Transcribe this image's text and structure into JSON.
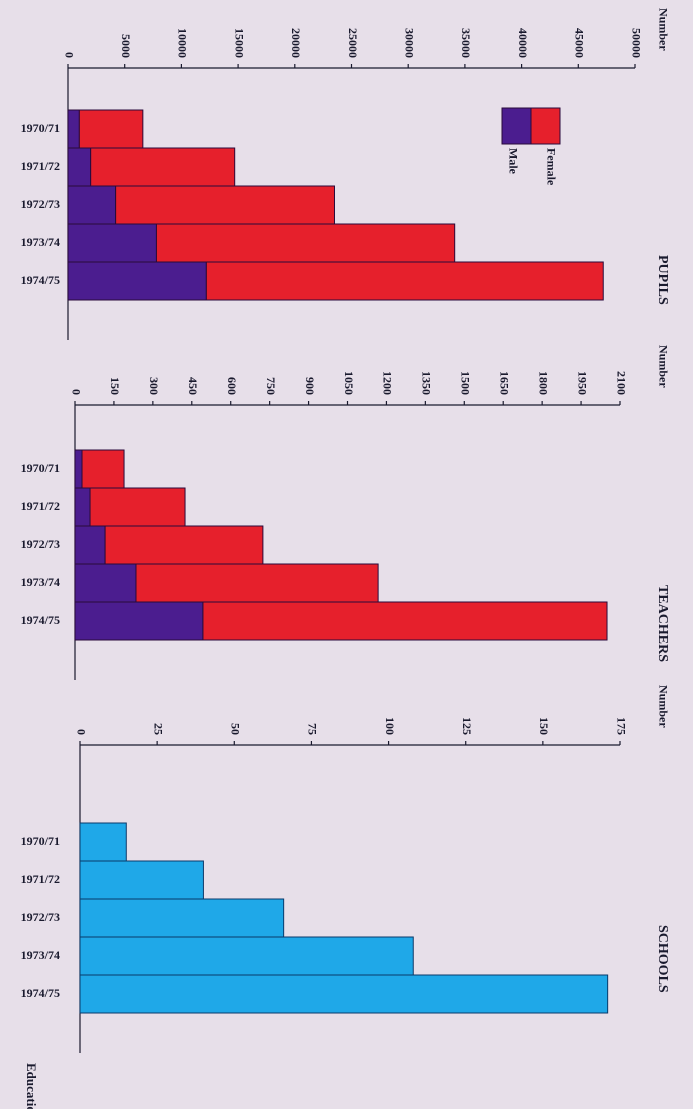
{
  "chart_data": [
    {
      "type": "bar",
      "orientation": "horizontal",
      "stacked": true,
      "title": "PUPILS",
      "value_label": "Number",
      "categories": [
        "1970/71",
        "1971/72",
        "1972/73",
        "1973/74",
        "1974/75"
      ],
      "series": [
        {
          "name": "Female",
          "color": "#4b1d8f",
          "values": [
            1000,
            2000,
            4200,
            7800,
            12200
          ]
        },
        {
          "name": "Male",
          "color": "#e6202c",
          "values": [
            5600,
            12700,
            19300,
            26300,
            35000
          ]
        }
      ],
      "xlim": [
        0,
        50000
      ],
      "xticks": [
        0,
        5000,
        10000,
        15000,
        20000,
        25000,
        30000,
        35000,
        40000,
        45000,
        50000
      ],
      "legend": true
    },
    {
      "type": "bar",
      "orientation": "horizontal",
      "stacked": true,
      "title": "TEACHERS",
      "value_label": "Number",
      "categories": [
        "1970/71",
        "1971/72",
        "1972/73",
        "1973/74",
        "1974/75"
      ],
      "series": [
        {
          "name": "Female",
          "color": "#4b1d8f",
          "values": [
            27,
            58,
            116,
            235,
            493
          ]
        },
        {
          "name": "Male",
          "color": "#e6202c",
          "values": [
            162,
            366,
            608,
            933,
            1557
          ]
        }
      ],
      "xlim": [
        0,
        2100
      ],
      "xticks": [
        0,
        150,
        300,
        450,
        600,
        750,
        900,
        1050,
        1200,
        1350,
        1500,
        1650,
        1800,
        1950,
        2100
      ],
      "legend": false
    },
    {
      "type": "bar",
      "orientation": "horizontal",
      "title": "SCHOOLS",
      "value_label": "Number",
      "category_label": "Educational year",
      "categories": [
        "1970/71",
        "1971/72",
        "1972/73",
        "1973/74",
        "1974/75"
      ],
      "values": [
        15,
        40,
        66,
        108,
        171
      ],
      "color": "#1fa8e8",
      "xlim": [
        0,
        175
      ],
      "xticks": [
        0,
        25,
        50,
        75,
        100,
        125,
        150,
        175
      ]
    }
  ]
}
